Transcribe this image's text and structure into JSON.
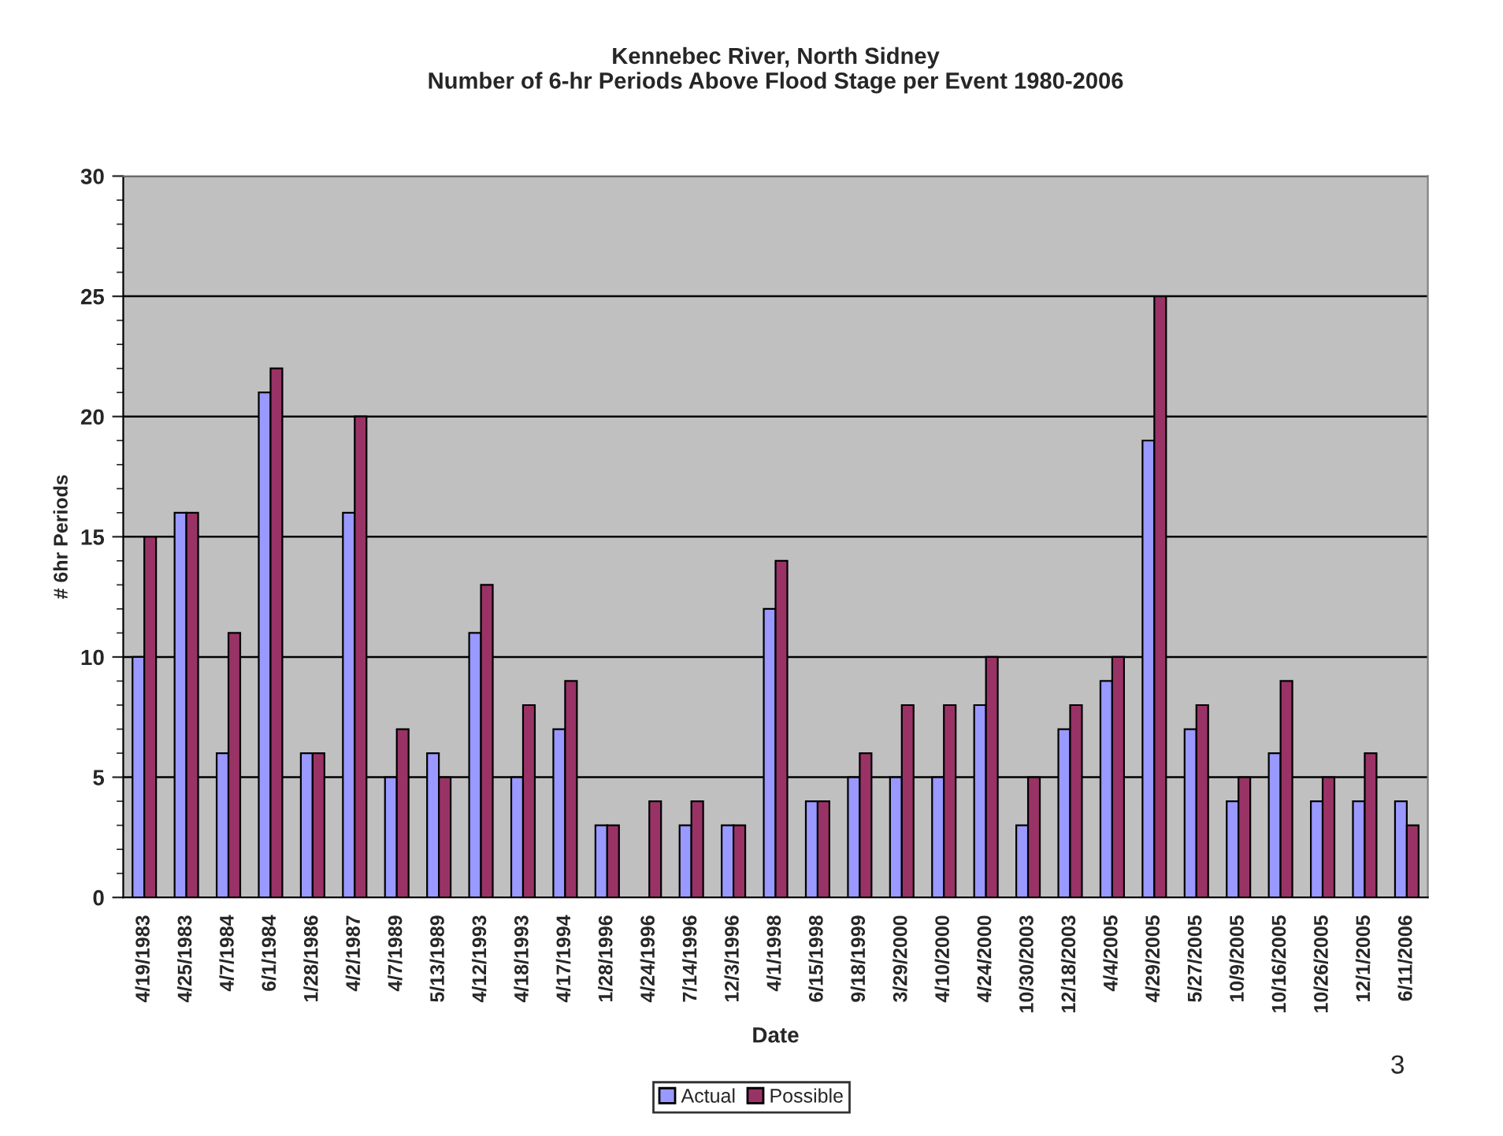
{
  "chart_data": {
    "type": "bar",
    "title": "Kennebec River, North Sidney\nNumber of 6-hr Periods Above Flood Stage per Event 1980-2006",
    "xlabel": "Date",
    "ylabel": "# 6hr Periods",
    "categories": [
      "4/19/1983",
      "4/25/1983",
      "4/7/1984",
      "6/1/1984",
      "1/28/1986",
      "4/2/1987",
      "4/7/1989",
      "5/13/1989",
      "4/12/1993",
      "4/18/1993",
      "4/17/1994",
      "1/28/1996",
      "4/24/1996",
      "7/14/1996",
      "12/3/1996",
      "4/1/1998",
      "6/15/1998",
      "9/18/1999",
      "3/29/2000",
      "4/10/2000",
      "4/24/2000",
      "10/30/2003",
      "12/18/2003",
      "4/4/2005",
      "4/29/2005",
      "5/27/2005",
      "10/9/2005",
      "10/16/2005",
      "10/26/2005",
      "12/1/2005",
      "6/11/2006"
    ],
    "series": [
      {
        "name": "Actual",
        "color": "#9999ff",
        "values": [
          10,
          16,
          6,
          21,
          6,
          16,
          5,
          6,
          11,
          5,
          7,
          3,
          null,
          3,
          3,
          12,
          4,
          5,
          5,
          5,
          8,
          3,
          7,
          9,
          19,
          7,
          4,
          6,
          4,
          4,
          4
        ]
      },
      {
        "name": "Possible",
        "color": "#993366",
        "values": [
          15,
          16,
          11,
          22,
          6,
          20,
          7,
          5,
          13,
          8,
          9,
          3,
          4,
          4,
          3,
          14,
          4,
          6,
          8,
          8,
          10,
          5,
          8,
          10,
          25,
          8,
          5,
          9,
          5,
          6,
          3
        ]
      }
    ],
    "ylim": [
      0,
      30
    ],
    "yticks": [
      0,
      5,
      10,
      15,
      20,
      25,
      30
    ],
    "grid": "y",
    "legend": "bottom",
    "annotations": [
      "3"
    ]
  }
}
